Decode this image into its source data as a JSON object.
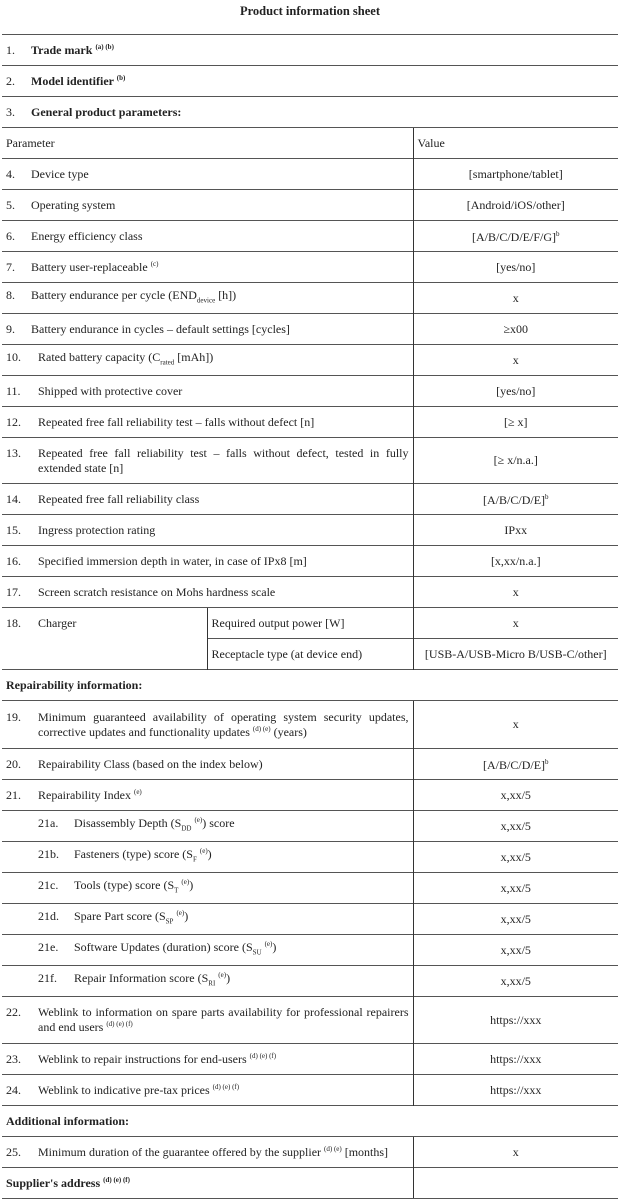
{
  "title": "Product information sheet",
  "header": {
    "parameter": "Parameter",
    "value": "Value"
  },
  "rows": [
    {
      "kind": "full",
      "num": "1.",
      "label": "Trade mark",
      "notes": "(a) (b)",
      "bold": true
    },
    {
      "kind": "full",
      "num": "2.",
      "label": "Model identifier",
      "notes": "(b)",
      "bold": true
    },
    {
      "kind": "full",
      "num": "3.",
      "label": "General product parameters:",
      "bold": true,
      "noline": true
    },
    {
      "kind": "header"
    },
    {
      "num": "4.",
      "label": "Device type",
      "value": "[smartphone/tablet]"
    },
    {
      "num": "5.",
      "label": "Operating system",
      "value": "[Android/iOS/other]"
    },
    {
      "num": "6.",
      "label": "Energy efficiency class",
      "value": "[A/B/C/D/E/F/G]",
      "value_sup": "b"
    },
    {
      "num": "7.",
      "label": "Battery user-replaceable",
      "notes": "(c)",
      "value": "[yes/no]"
    },
    {
      "num": "8.",
      "label": "Battery endurance per cycle (END",
      "sub": "device",
      "label2": " [h])",
      "value": "x"
    },
    {
      "num": "9.",
      "label": "Battery endurance in cycles – default settings [cycles]",
      "value": "≥x00"
    },
    {
      "num": "10.",
      "label": "Rated battery capacity (C",
      "sub": "rated",
      "label2": " [mAh])",
      "value": "x"
    },
    {
      "num": "11.",
      "label": "Shipped with protective cover",
      "value": "[yes/no]"
    },
    {
      "num": "12.",
      "label": "Repeated free fall reliability test – falls without defect [n]",
      "value": "[≥ x]"
    },
    {
      "num": "13.",
      "label": "Repeated free fall reliability test – falls without defect, tested in fully extended state [n]",
      "value": "[≥ x/n.a.]",
      "h": 46
    },
    {
      "num": "14.",
      "label": "Repeated free fall reliability class",
      "value": "[A/B/C/D/E]",
      "value_sup": "b"
    },
    {
      "num": "15.",
      "label": "Ingress protection rating",
      "value": "IPxx"
    },
    {
      "num": "16.",
      "label": "Specified immersion depth in water, in case of IPx8 [m]",
      "value": "[x,xx/n.a.]"
    },
    {
      "num": "17.",
      "label": "Screen scratch resistance on Mohs hardness scale",
      "value": "x"
    },
    {
      "kind": "charger",
      "num": "18.",
      "label": "Charger",
      "subrows": [
        {
          "label": "Required output power [W]",
          "value": "x"
        },
        {
          "label": "Receptacle type (at device end)",
          "value": "[USB-A/USB-Micro B/USB-C/other]"
        }
      ]
    },
    {
      "kind": "full",
      "label": "Repairability information:",
      "bold": true
    },
    {
      "num": "19.",
      "label": "Minimum guaranteed availability of operating system security updates, corrective updates and functionality updates",
      "notes": "(d) (e)",
      "label2": " (years)",
      "value": "x",
      "h": 48
    },
    {
      "num": "20.",
      "label": "Repairability Class (based on the index below)",
      "value": "[A/B/C/D/E]",
      "value_sup": "b"
    },
    {
      "num": "21.",
      "label": "Repairability Index",
      "notes": "(e)",
      "value": "x,xx/5"
    },
    {
      "num": "21a.",
      "indent": true,
      "label": "Disassembly Depth (S",
      "sub": "DD",
      "label2": ") score",
      "notes": "(e)",
      "value": "x,xx/5"
    },
    {
      "num": "21b.",
      "indent": true,
      "label": "Fasteners (type) score (S",
      "sub": "F",
      "label2": ")",
      "notes": "(e)",
      "value": "x,xx/5"
    },
    {
      "num": "21c.",
      "indent": true,
      "label": "Tools (type) score (S",
      "sub": "T",
      "label2": ")",
      "notes": "(e)",
      "value": "x,xx/5"
    },
    {
      "num": "21d.",
      "indent": true,
      "label": "Spare Part score (S",
      "sub": "SP",
      "label2": ")",
      "notes": "(e)",
      "value": "x,xx/5"
    },
    {
      "num": "21e.",
      "indent": true,
      "label": "Software Updates (duration) score (S",
      "sub": "SU",
      "label2": ")",
      "notes": "(e)",
      "value": "x,xx/5"
    },
    {
      "num": "21f.",
      "indent": true,
      "label": "Repair Information score (S",
      "sub": "RI",
      "label2": ")",
      "notes": "(e)",
      "value": "x,xx/5"
    },
    {
      "num": "22.",
      "label": "Weblink to information on spare parts availability for professional repairers and end users",
      "notes": "(d) (e) (f)",
      "value": "https://xxx",
      "h": 47
    },
    {
      "num": "23.",
      "label": "Weblink to repair instructions for end-users",
      "notes": "(d) (e) (f)",
      "value": "https://xxx"
    },
    {
      "num": "24.",
      "label": "Weblink to indicative pre-tax prices",
      "notes": "(d) (e) (f)",
      "value": "https://xxx"
    },
    {
      "kind": "full",
      "label": "Additional information:",
      "bold": true
    },
    {
      "num": "25.",
      "label": "Minimum duration of the guarantee offered by the supplier ",
      "notes": "(d) (e)",
      "label2": " [months]",
      "value": "x"
    },
    {
      "label": "Supplier's address",
      "notes": "(d) (e) (f)",
      "bold": true,
      "value": ""
    }
  ]
}
